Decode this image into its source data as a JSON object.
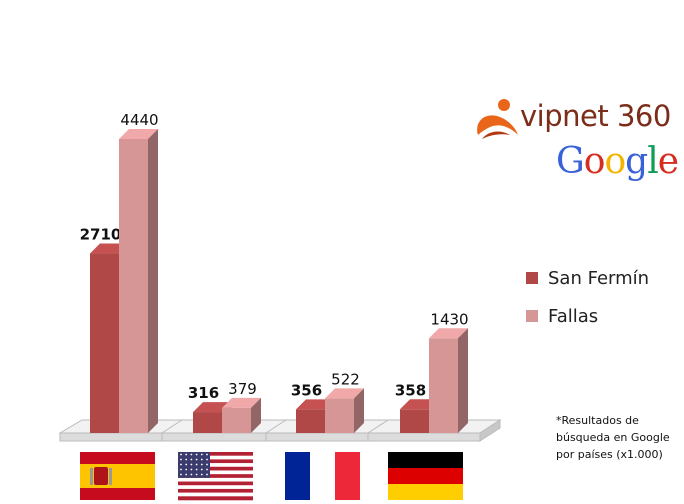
{
  "chart_data": {
    "type": "bar",
    "categories": [
      "España",
      "Estados Unidos",
      "Francia",
      "Alemania"
    ],
    "series": [
      {
        "name": "San Fermín",
        "values": [
          2710,
          316,
          356,
          358
        ],
        "color": "#b04848",
        "label_bold": true
      },
      {
        "name": "Fallas",
        "values": [
          4440,
          379,
          522,
          1430
        ],
        "color": "#d69696",
        "label_bold": false
      }
    ],
    "ylim": [
      0,
      4440
    ],
    "grid": false,
    "legend_position": "right",
    "three_d": true,
    "footnote": "*Resultados de búsqueda en Google por países (x1.000)"
  },
  "flags": [
    {
      "country": "spain",
      "icon": "spain-flag-icon"
    },
    {
      "country": "usa",
      "icon": "usa-flag-icon"
    },
    {
      "country": "france",
      "icon": "france-flag-icon"
    },
    {
      "country": "germany",
      "icon": "germany-flag-icon"
    }
  ],
  "logos": {
    "vipnet": "vipnet 360",
    "google": "Google"
  },
  "colors": {
    "google_letters": [
      "#3a62d8",
      "#d62d20",
      "#f4b400",
      "#3a62d8",
      "#0f9d58",
      "#d62d20"
    ]
  }
}
